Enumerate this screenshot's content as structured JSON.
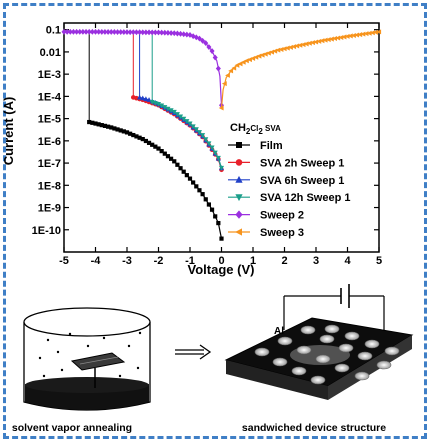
{
  "chart_data": {
    "type": "line",
    "xlabel": "Voltage (V)",
    "ylabel": "Current (A)",
    "xlim": [
      -5,
      5
    ],
    "ylim_log": [
      1e-11,
      0.2
    ],
    "y_scale": "log",
    "xticks": [
      "-5",
      "-4",
      "-3",
      "-2",
      "-1",
      "0",
      "1",
      "2",
      "3",
      "4",
      "5"
    ],
    "yticks": [
      "0.1",
      "0.01",
      "1E-3",
      "1E-4",
      "1E-5",
      "1E-6",
      "1E-7",
      "1E-8",
      "1E-9",
      "1E-10"
    ],
    "legend_title": "CH2Cl2 SVA",
    "legend_title_parts": {
      "pre": "CH",
      "sub1": "2",
      "mid": "Cl",
      "sub2": "2",
      "post": " SVA"
    },
    "legend_position": "inside-right",
    "series": [
      {
        "name": "Film",
        "color": "#000000",
        "marker": "square",
        "x": [
          -4.2,
          -4.0,
          -3.5,
          -3.0,
          -2.5,
          -2.0,
          -1.5,
          -1.0,
          -0.6,
          -0.3,
          -0.1,
          0.0
        ],
        "y": [
          7e-06,
          6e-06,
          4e-06,
          2.4e-06,
          1.2e-06,
          4.5e-07,
          1.2e-07,
          2e-08,
          4e-09,
          8e-10,
          2e-10,
          4e-11
        ],
        "jump_to": 0.08
      },
      {
        "name": "SVA 2h Sweep 1",
        "color": "#e8202a",
        "marker": "circle",
        "x": [
          -2.8,
          -2.5,
          -2.0,
          -1.5,
          -1.0,
          -0.6,
          -0.3,
          -0.1,
          0.0
        ],
        "y": [
          9e-05,
          7e-05,
          4e-05,
          1.6e-05,
          5e-06,
          1.5e-06,
          4e-07,
          1.5e-07,
          5e-08
        ],
        "jump_to": 0.08
      },
      {
        "name": "SVA 6h Sweep 1",
        "color": "#2040c8",
        "marker": "triangle-up",
        "x": [
          -2.6,
          -2.3,
          -2.0,
          -1.5,
          -1.0,
          -0.6,
          -0.3,
          -0.1,
          0.0
        ],
        "y": [
          9e-05,
          7e-05,
          4.5e-05,
          1.8e-05,
          5.5e-06,
          1.6e-06,
          4.5e-07,
          1.6e-07,
          6e-08
        ],
        "jump_to": 0.08
      },
      {
        "name": "SVA 12h Sweep 1",
        "color": "#1a9e8a",
        "marker": "triangle-down",
        "x": [
          -2.2,
          -2.0,
          -1.5,
          -1.0,
          -0.6,
          -0.3,
          -0.1,
          0.0
        ],
        "y": [
          5.5e-05,
          4.5e-05,
          2e-05,
          6e-06,
          1.8e-06,
          5e-07,
          1.7e-07,
          6e-08
        ],
        "jump_to": 0.08
      },
      {
        "name": "Sweep 2",
        "color": "#9b30e0",
        "marker": "diamond",
        "x": [
          -5.0,
          -4.0,
          -3.0,
          -2.0,
          -1.5,
          -1.0,
          -0.7,
          -0.5,
          -0.3,
          -0.15,
          -0.05,
          0.0
        ],
        "y": [
          0.08,
          0.08,
          0.078,
          0.075,
          0.07,
          0.058,
          0.04,
          0.025,
          0.011,
          0.004,
          0.0008,
          4e-05
        ]
      },
      {
        "name": "Sweep 3",
        "color": "#f7941d",
        "marker": "triangle-left",
        "x": [
          0.0,
          0.05,
          0.15,
          0.3,
          0.5,
          0.8,
          1.2,
          1.8,
          2.5,
          3.2,
          4.0,
          5.0
        ],
        "y": [
          3e-05,
          0.0002,
          0.0007,
          0.0014,
          0.0025,
          0.004,
          0.0065,
          0.012,
          0.02,
          0.032,
          0.05,
          0.08
        ]
      }
    ]
  },
  "schematic": {
    "left_caption": "solvent vapor annealing",
    "right_caption": "sandwiched device structure",
    "electrode_label": "Al"
  }
}
